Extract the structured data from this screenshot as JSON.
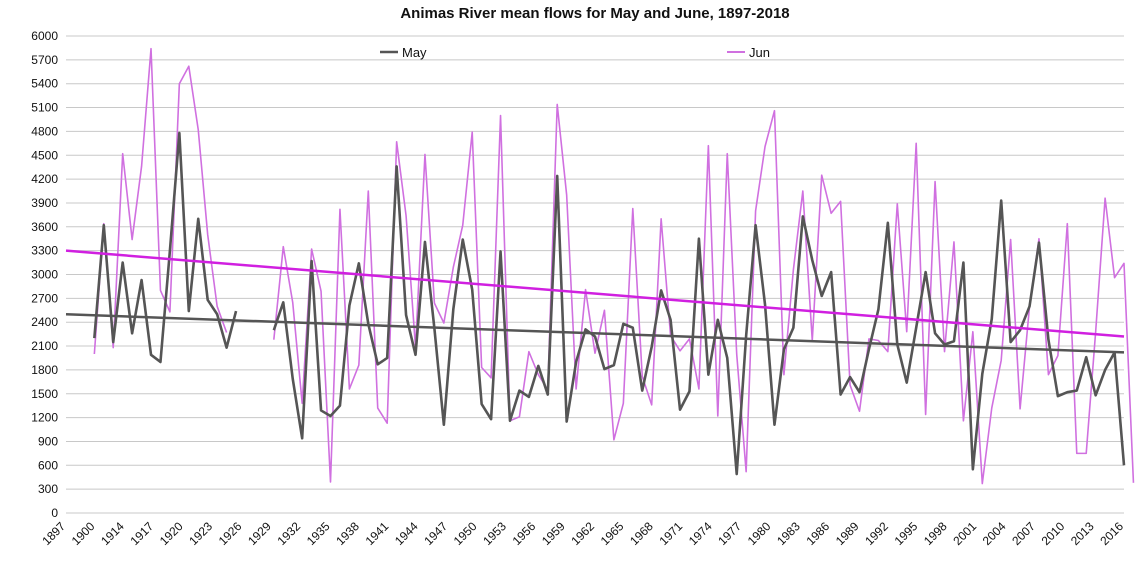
{
  "chart_data": {
    "type": "line",
    "title": "Animas River mean flows for May and June, 1897-2018",
    "xlabel": "",
    "ylabel": "",
    "ylim": [
      0,
      6000
    ],
    "yticks": [
      0,
      300,
      600,
      900,
      1200,
      1500,
      1800,
      2100,
      2400,
      2700,
      3000,
      3300,
      3600,
      3900,
      4200,
      4500,
      4800,
      5100,
      5400,
      5700,
      6000
    ],
    "xtick_labels": [
      "1897",
      "1900",
      "1914",
      "1917",
      "1920",
      "1923",
      "1926",
      "1929",
      "1932",
      "1935",
      "1938",
      "1941",
      "1944",
      "1947",
      "1950",
      "1953",
      "1956",
      "1959",
      "1962",
      "1965",
      "1968",
      "1971",
      "1974",
      "1977",
      "1980",
      "1983",
      "1986",
      "1989",
      "1992",
      "1995",
      "1998",
      "2001",
      "2004",
      "2007",
      "2010",
      "2013",
      "2016"
    ],
    "grid": true,
    "legend_position": "top",
    "series": [
      {
        "name": "May",
        "color": "#555555",
        "values": [
          null,
          null,
          null,
          2200,
          3620,
          2150,
          3150,
          2260,
          2930,
          1990,
          1900,
          3300,
          4780,
          2540,
          3700,
          2680,
          2500,
          2080,
          2540,
          null,
          null,
          null,
          2300,
          2650,
          1690,
          940,
          3170,
          1290,
          1220,
          1350,
          2610,
          3140,
          2380,
          1870,
          1950,
          4360,
          2490,
          1990,
          3410,
          2320,
          1110,
          2560,
          3440,
          2810,
          1370,
          1180,
          3290,
          1160,
          1540,
          1460,
          1850,
          1490,
          4240,
          1150,
          1900,
          2310,
          2220,
          1810,
          1860,
          2380,
          2330,
          1540,
          2090,
          2800,
          2430,
          1300,
          1530,
          3450,
          1740,
          2430,
          1950,
          490,
          2230,
          3620,
          2620,
          1110,
          2060,
          2330,
          3730,
          3180,
          2730,
          3030,
          1490,
          1710,
          1520,
          2060,
          2560,
          3650,
          2120,
          1640,
          2330,
          3030,
          2260,
          2120,
          2160,
          3150,
          550,
          1750,
          2440,
          3930,
          2150,
          2300,
          2600,
          3400,
          2180,
          1470,
          1520,
          1540,
          1960,
          1480,
          1800,
          2020,
          600
        ],
        "trend": [
          2500,
          2020
        ]
      },
      {
        "name": "Jun",
        "color": "#d070e0",
        "values": [
          null,
          null,
          null,
          2000,
          3640,
          2080,
          4520,
          3440,
          4360,
          5840,
          2800,
          2530,
          5400,
          5620,
          4820,
          3500,
          2600,
          2270,
          null,
          null,
          null,
          null,
          2180,
          3350,
          2650,
          1380,
          3320,
          2790,
          390,
          3820,
          1560,
          1860,
          4050,
          1320,
          1130,
          4670,
          3740,
          2080,
          4510,
          2640,
          2390,
          3090,
          3620,
          4790,
          1830,
          1700,
          5000,
          1160,
          1210,
          2030,
          1740,
          1550,
          5140,
          4000,
          1560,
          2810,
          2010,
          2550,
          920,
          1380,
          3830,
          1720,
          1360,
          3700,
          2230,
          2040,
          2190,
          1560,
          4620,
          1220,
          4520,
          2000,
          520,
          3800,
          4610,
          5060,
          1740,
          3060,
          4050,
          2170,
          4250,
          3770,
          3920,
          1610,
          1280,
          2190,
          2170,
          2030,
          3890,
          2280,
          4650,
          1240,
          4170,
          2030,
          3410,
          1160,
          2280,
          370,
          1320,
          1920,
          3440,
          1310,
          2600,
          3450,
          1740,
          1980,
          3640,
          750,
          750,
          2280,
          3960,
          2960,
          3140,
          380
        ],
        "trend": [
          3300,
          2220
        ]
      }
    ]
  }
}
